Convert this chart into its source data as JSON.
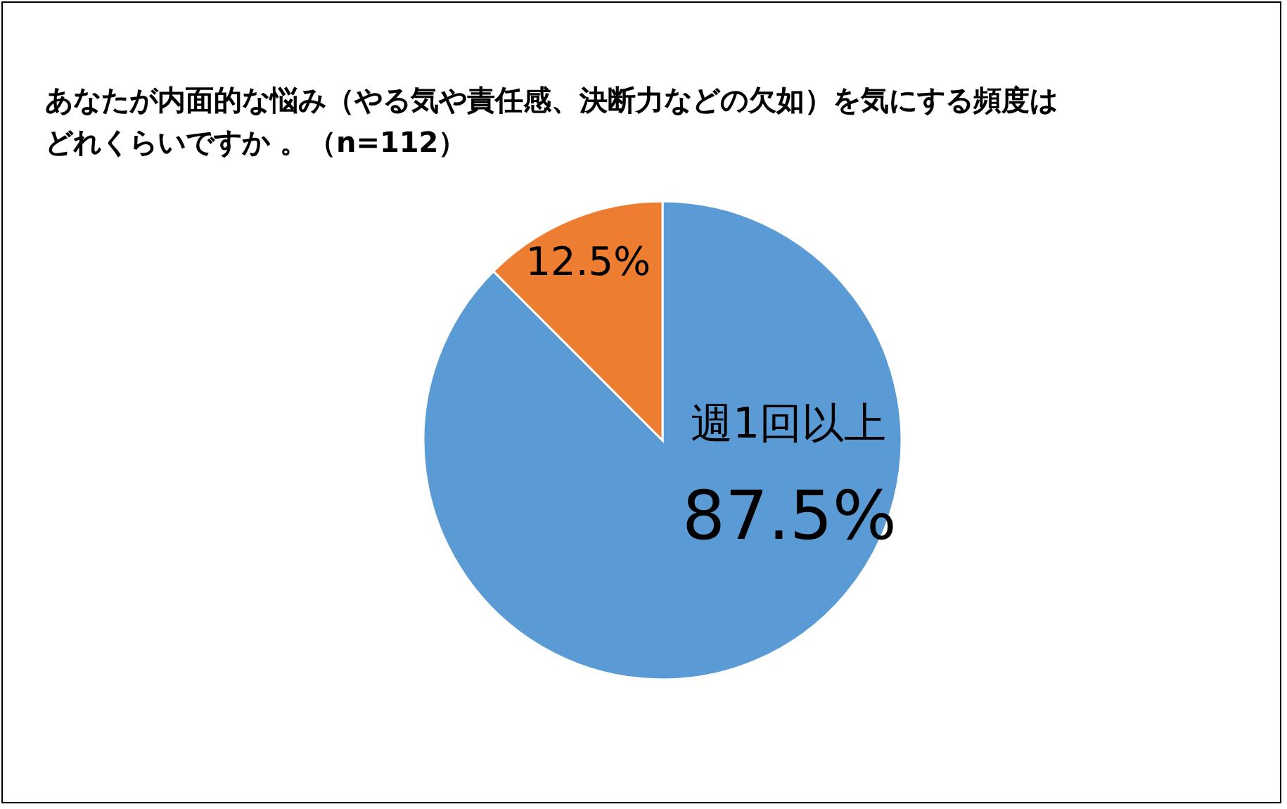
{
  "chart_data": {
    "type": "pie",
    "title": "あなたが内面的な悩み（やる気や責任感、決断力などの欠如）を気にする頻度はどれくらいですか 。（n=112）",
    "categories": [
      "週1回以上",
      null
    ],
    "values": [
      87.5,
      12.5
    ],
    "value_labels": [
      "87.5%",
      "12.5%"
    ],
    "colors": [
      "#5b9bd5",
      "#ed7d31"
    ]
  }
}
